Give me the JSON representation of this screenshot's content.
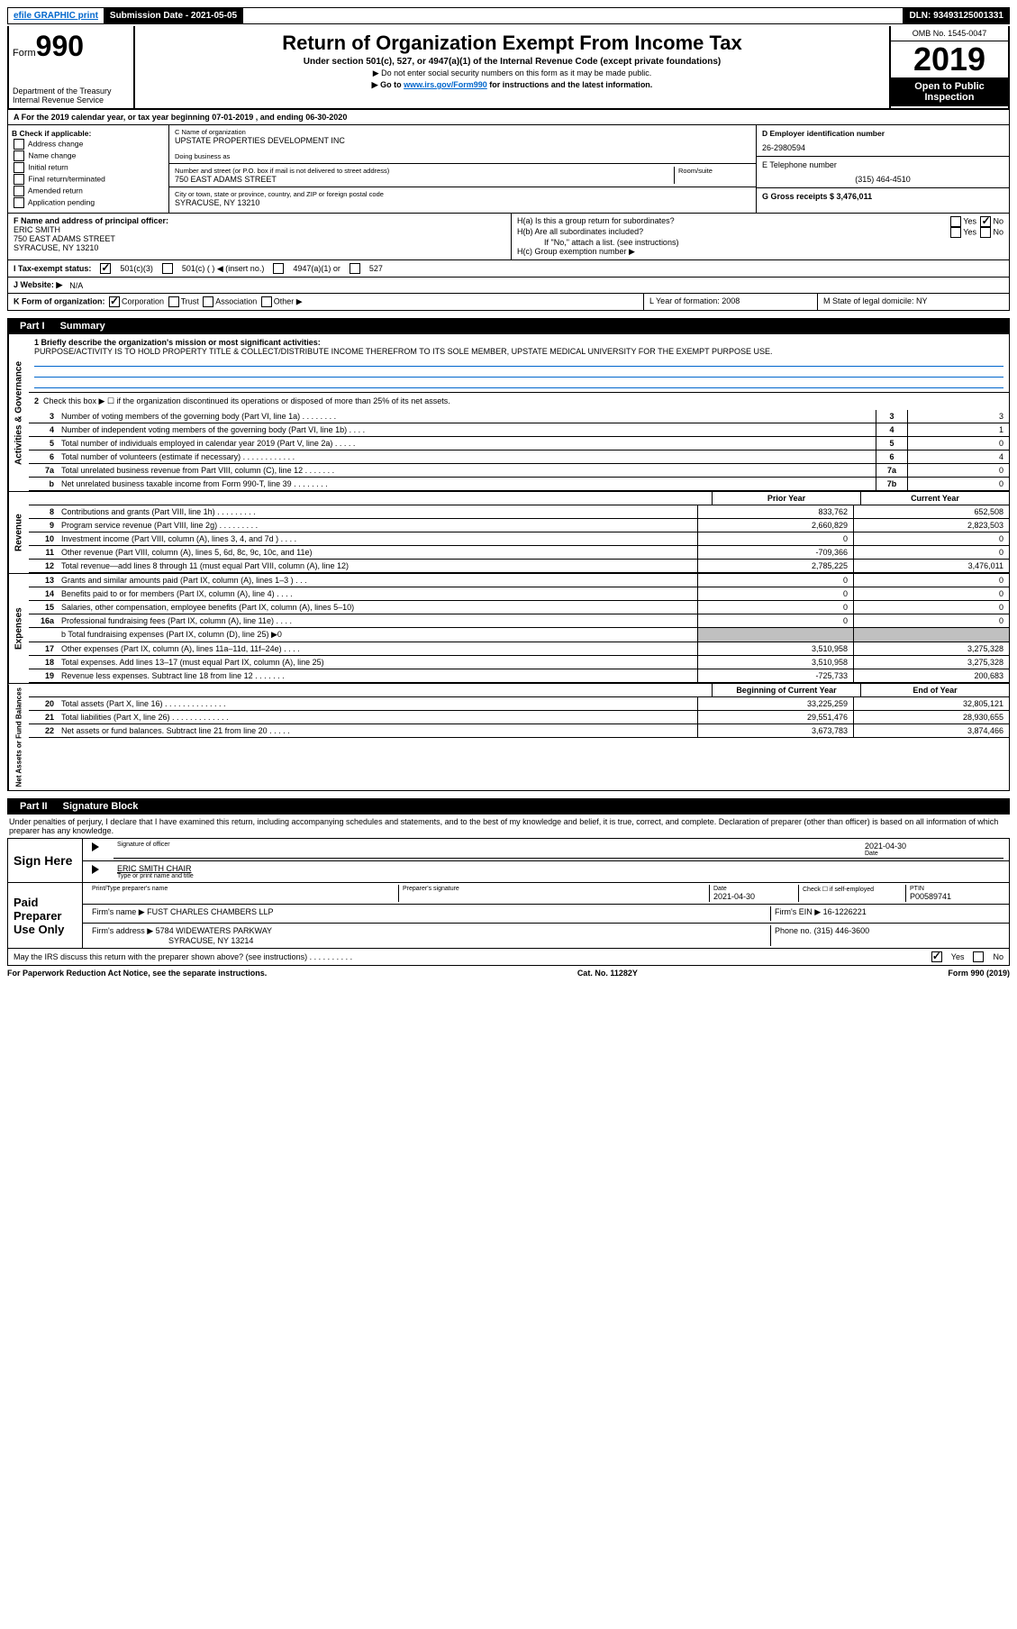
{
  "topbar": {
    "efile": "efile GRAPHIC print",
    "submission_label": "Submission Date - 2021-05-05",
    "dln": "DLN: 93493125001331"
  },
  "header": {
    "form_label": "Form",
    "form_num": "990",
    "dept1": "Department of the Treasury",
    "dept2": "Internal Revenue Service",
    "title": "Return of Organization Exempt From Income Tax",
    "subtitle": "Under section 501(c), 527, or 4947(a)(1) of the Internal Revenue Code (except private foundations)",
    "note1": "▶ Do not enter social security numbers on this form as it may be made public.",
    "note2_pre": "▶ Go to ",
    "note2_link": "www.irs.gov/Form990",
    "note2_post": " for instructions and the latest information.",
    "omb": "OMB No. 1545-0047",
    "year": "2019",
    "open": "Open to Public Inspection"
  },
  "row_a": "A For the 2019 calendar year, or tax year beginning 07-01-2019    , and ending 06-30-2020",
  "box_b": {
    "title": "B Check if applicable:",
    "opts": [
      "Address change",
      "Name change",
      "Initial return",
      "Final return/terminated",
      "Amended return",
      "Application pending"
    ]
  },
  "box_c": {
    "name_lbl": "C Name of organization",
    "name": "UPSTATE PROPERTIES DEVELOPMENT INC",
    "dba_lbl": "Doing business as",
    "addr_lbl": "Number and street (or P.O. box if mail is not delivered to street address)",
    "room_lbl": "Room/suite",
    "addr": "750 EAST ADAMS STREET",
    "city_lbl": "City or town, state or province, country, and ZIP or foreign postal code",
    "city": "SYRACUSE, NY  13210"
  },
  "box_d": {
    "lbl": "D Employer identification number",
    "val": "26-2980594"
  },
  "box_e": {
    "lbl": "E Telephone number",
    "val": "(315) 464-4510"
  },
  "box_g": {
    "lbl": "G Gross receipts $ 3,476,011"
  },
  "box_f": {
    "lbl": "F  Name and address of principal officer:",
    "name": "ERIC SMITH",
    "addr1": "750 EAST ADAMS STREET",
    "addr2": "SYRACUSE, NY  13210"
  },
  "box_h": {
    "ha": "H(a)  Is this a group return for subordinates?",
    "hb": "H(b)  Are all subordinates included?",
    "hb_note": "If \"No,\" attach a list. (see instructions)",
    "hc": "H(c)  Group exemption number ▶",
    "yes": "Yes",
    "no": "No"
  },
  "row_i": {
    "lbl": "I  Tax-exempt status:",
    "o1": "501(c)(3)",
    "o2": "501(c) (  ) ◀ (insert no.)",
    "o3": "4947(a)(1) or",
    "o4": "527"
  },
  "row_j": {
    "lbl": "J  Website: ▶",
    "val": "N/A"
  },
  "row_k": {
    "lbl": "K Form of organization:",
    "o1": "Corporation",
    "o2": "Trust",
    "o3": "Association",
    "o4": "Other ▶"
  },
  "row_l": {
    "lbl": "L Year of formation: 2008"
  },
  "row_m": {
    "lbl": "M State of legal domicile: NY"
  },
  "part1": {
    "label": "Part I",
    "title": "Summary"
  },
  "activities": {
    "side": "Activities & Governance",
    "l1_lbl": "1  Briefly describe the organization's mission or most significant activities:",
    "l1_text": "PURPOSE/ACTIVITY IS TO HOLD PROPERTY TITLE & COLLECT/DISTRIBUTE INCOME THEREFROM TO ITS SOLE MEMBER, UPSTATE MEDICAL UNIVERSITY FOR THE EXEMPT PURPOSE USE.",
    "l2": "Check this box ▶ ☐  if the organization discontinued its operations or disposed of more than 25% of its net assets.",
    "lines": [
      {
        "n": "3",
        "t": "Number of voting members of the governing body (Part VI, line 1a)  .  .  .  .  .  .  .  .",
        "bn": "3",
        "bv": "3"
      },
      {
        "n": "4",
        "t": "Number of independent voting members of the governing body (Part VI, line 1b)  .  .  .  .",
        "bn": "4",
        "bv": "1"
      },
      {
        "n": "5",
        "t": "Total number of individuals employed in calendar year 2019 (Part V, line 2a)  .  .  .  .  .",
        "bn": "5",
        "bv": "0"
      },
      {
        "n": "6",
        "t": "Total number of volunteers (estimate if necessary)  .  .  .  .  .  .  .  .  .  .  .  .",
        "bn": "6",
        "bv": "4"
      },
      {
        "n": "7a",
        "t": "Total unrelated business revenue from Part VIII, column (C), line 12  .  .  .  .  .  .  .",
        "bn": "7a",
        "bv": "0"
      },
      {
        "n": "b",
        "t": "Net unrelated business taxable income from Form 990-T, line 39  .  .  .  .  .  .  .  .",
        "bn": "7b",
        "bv": "0"
      }
    ]
  },
  "revenue": {
    "side": "Revenue",
    "h1": "Prior Year",
    "h2": "Current Year",
    "lines": [
      {
        "n": "8",
        "t": "Contributions and grants (Part VIII, line 1h)  .  .  .  .  .  .  .  .  .",
        "c1": "833,762",
        "c2": "652,508"
      },
      {
        "n": "9",
        "t": "Program service revenue (Part VIII, line 2g)  .  .  .  .  .  .  .  .  .",
        "c1": "2,660,829",
        "c2": "2,823,503"
      },
      {
        "n": "10",
        "t": "Investment income (Part VIII, column (A), lines 3, 4, and 7d )  .  .  .  .",
        "c1": "0",
        "c2": "0"
      },
      {
        "n": "11",
        "t": "Other revenue (Part VIII, column (A), lines 5, 6d, 8c, 9c, 10c, and 11e)",
        "c1": "-709,366",
        "c2": "0"
      },
      {
        "n": "12",
        "t": "Total revenue—add lines 8 through 11 (must equal Part VIII, column (A), line 12)",
        "c1": "2,785,225",
        "c2": "3,476,011"
      }
    ]
  },
  "expenses": {
    "side": "Expenses",
    "lines": [
      {
        "n": "13",
        "t": "Grants and similar amounts paid (Part IX, column (A), lines 1–3 )  .  .  .",
        "c1": "0",
        "c2": "0"
      },
      {
        "n": "14",
        "t": "Benefits paid to or for members (Part IX, column (A), line 4)  .  .  .  .",
        "c1": "0",
        "c2": "0"
      },
      {
        "n": "15",
        "t": "Salaries, other compensation, employee benefits (Part IX, column (A), lines 5–10)",
        "c1": "0",
        "c2": "0"
      },
      {
        "n": "16a",
        "t": "Professional fundraising fees (Part IX, column (A), line 11e)  .  .  .  .",
        "c1": "0",
        "c2": "0"
      }
    ],
    "l16b": "b  Total fundraising expenses (Part IX, column (D), line 25) ▶0",
    "lines2": [
      {
        "n": "17",
        "t": "Other expenses (Part IX, column (A), lines 11a–11d, 11f–24e)  .  .  .  .",
        "c1": "3,510,958",
        "c2": "3,275,328"
      },
      {
        "n": "18",
        "t": "Total expenses. Add lines 13–17 (must equal Part IX, column (A), line 25)",
        "c1": "3,510,958",
        "c2": "3,275,328"
      },
      {
        "n": "19",
        "t": "Revenue less expenses. Subtract line 18 from line 12  .  .  .  .  .  .  .",
        "c1": "-725,733",
        "c2": "200,683"
      }
    ]
  },
  "netassets": {
    "side": "Net Assets or Fund Balances",
    "h1": "Beginning of Current Year",
    "h2": "End of Year",
    "lines": [
      {
        "n": "20",
        "t": "Total assets (Part X, line 16)  .  .  .  .  .  .  .  .  .  .  .  .  .  .",
        "c1": "33,225,259",
        "c2": "32,805,121"
      },
      {
        "n": "21",
        "t": "Total liabilities (Part X, line 26)  .  .  .  .  .  .  .  .  .  .  .  .  .",
        "c1": "29,551,476",
        "c2": "28,930,655"
      },
      {
        "n": "22",
        "t": "Net assets or fund balances. Subtract line 21 from line 20  .  .  .  .  .",
        "c1": "3,673,783",
        "c2": "3,874,466"
      }
    ]
  },
  "part2": {
    "label": "Part II",
    "title": "Signature Block"
  },
  "sig": {
    "penalty": "Under penalties of perjury, I declare that I have examined this return, including accompanying schedules and statements, and to the best of my knowledge and belief, it is true, correct, and complete. Declaration of preparer (other than officer) is based on all information of which preparer has any knowledge.",
    "sign_here": "Sign Here",
    "sig_officer": "Signature of officer",
    "date_lbl": "Date",
    "date": "2021-04-30",
    "name_title": "ERIC SMITH  CHAIR",
    "name_title_lbl": "Type or print name and title",
    "paid": "Paid Preparer Use Only",
    "prep_name_lbl": "Print/Type preparer's name",
    "prep_sig_lbl": "Preparer's signature",
    "prep_date": "2021-04-30",
    "check_lbl": "Check ☐ if self-employed",
    "ptin_lbl": "PTIN",
    "ptin": "P00589741",
    "firm_name_lbl": "Firm's name   ▶",
    "firm_name": "FUST CHARLES CHAMBERS LLP",
    "firm_ein_lbl": "Firm's EIN ▶",
    "firm_ein": "16-1226221",
    "firm_addr_lbl": "Firm's address ▶",
    "firm_addr1": "5784 WIDEWATERS PARKWAY",
    "firm_addr2": "SYRACUSE, NY  13214",
    "firm_phone_lbl": "Phone no.",
    "firm_phone": "(315) 446-3600",
    "discuss": "May the IRS discuss this return with the preparer shown above? (see instructions)  .  .  .  .  .  .  .  .  .  ."
  },
  "footer": {
    "left": "For Paperwork Reduction Act Notice, see the separate instructions.",
    "mid": "Cat. No. 11282Y",
    "right": "Form 990 (2019)"
  }
}
